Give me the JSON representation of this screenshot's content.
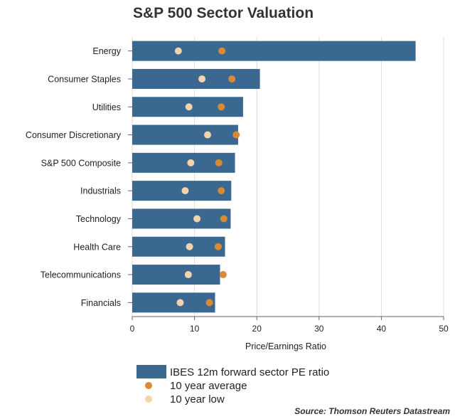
{
  "chart_data": {
    "type": "bar",
    "orientation": "horizontal",
    "title": "S&P 500 Sector Valuation",
    "xlabel": "Price/Earnings Ratio",
    "ylabel": "",
    "xlim": [
      0,
      50
    ],
    "xticks": [
      0,
      10,
      20,
      30,
      40,
      50
    ],
    "grid": true,
    "categories": [
      "Energy",
      "Consumer Staples",
      "Utilities",
      "Consumer Discretionary",
      "S&P 500 Composite",
      "Industrials",
      "Technology",
      "Health Care",
      "Telecommunications",
      "Financials"
    ],
    "series": [
      {
        "name": "IBES 12m forward sector PE ratio",
        "kind": "bar",
        "color": "#3a6891",
        "values": [
          45.5,
          20.5,
          17.8,
          17.0,
          16.5,
          15.9,
          15.8,
          14.9,
          14.1,
          13.3
        ]
      },
      {
        "name": "10 year average",
        "kind": "dot",
        "color": "#d88a35",
        "values": [
          14.4,
          16.0,
          14.3,
          16.7,
          13.9,
          14.3,
          14.7,
          13.8,
          14.6,
          12.4
        ]
      },
      {
        "name": "10 year low",
        "kind": "dot",
        "color": "#f2d3ad",
        "values": [
          7.4,
          11.2,
          9.1,
          12.1,
          9.4,
          8.5,
          10.4,
          9.2,
          9.0,
          7.7
        ]
      }
    ],
    "legend_position": "bottom-left",
    "source": "Source: Thomson Reuters Datastream"
  }
}
